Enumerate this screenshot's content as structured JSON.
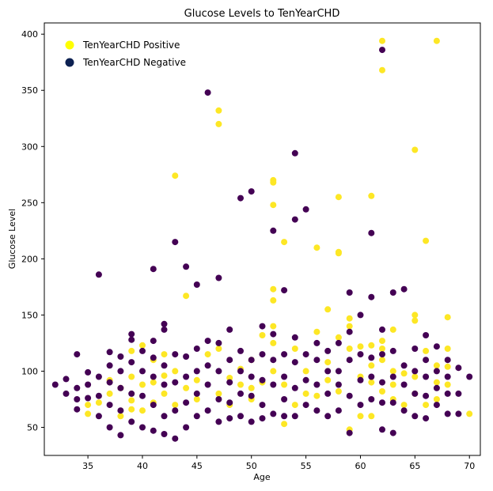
{
  "chart_data": {
    "type": "scatter",
    "title": "Glucose Levels to TenYearCHD",
    "xlabel": "Age",
    "ylabel": "Glucose Level",
    "xlim": [
      31,
      71
    ],
    "ylim": [
      25,
      410
    ],
    "xticks": [
      35,
      40,
      45,
      50,
      55,
      60,
      65,
      70
    ],
    "yticks": [
      50,
      100,
      150,
      200,
      250,
      300,
      350,
      400
    ],
    "grid": false,
    "legend_position": "top-left",
    "series": [
      {
        "name": "TenYearCHD Positive",
        "color": "#fde725",
        "points": [
          [
            35,
            62
          ],
          [
            35,
            70
          ],
          [
            36,
            72
          ],
          [
            37,
            80
          ],
          [
            37,
            92
          ],
          [
            38,
            60
          ],
          [
            38,
            85
          ],
          [
            39,
            66
          ],
          [
            39,
            74
          ],
          [
            39,
            95
          ],
          [
            39,
            118
          ],
          [
            40,
            65
          ],
          [
            40,
            88
          ],
          [
            40,
            123
          ],
          [
            41,
            72
          ],
          [
            41,
            90
          ],
          [
            41,
            110
          ],
          [
            42,
            115
          ],
          [
            42,
            80
          ],
          [
            42,
            96
          ],
          [
            43,
            274
          ],
          [
            43,
            100
          ],
          [
            43,
            70
          ],
          [
            44,
            167
          ],
          [
            44,
            85
          ],
          [
            45,
            75
          ],
          [
            45,
            92
          ],
          [
            46,
            115
          ],
          [
            47,
            332
          ],
          [
            47,
            320
          ],
          [
            47,
            80
          ],
          [
            47,
            120
          ],
          [
            48,
            70
          ],
          [
            48,
            94
          ],
          [
            49,
            88
          ],
          [
            49,
            102
          ],
          [
            50,
            85
          ],
          [
            50,
            75
          ],
          [
            50,
            110
          ],
          [
            51,
            132
          ],
          [
            51,
            90
          ],
          [
            52,
            270
          ],
          [
            52,
            268
          ],
          [
            52,
            248
          ],
          [
            52,
            173
          ],
          [
            52,
            163
          ],
          [
            52,
            140
          ],
          [
            52,
            125
          ],
          [
            52,
            100
          ],
          [
            53,
            215
          ],
          [
            53,
            53
          ],
          [
            53,
            88
          ],
          [
            54,
            70
          ],
          [
            54,
            120
          ],
          [
            55,
            80
          ],
          [
            55,
            100
          ],
          [
            56,
            210
          ],
          [
            56,
            135
          ],
          [
            56,
            78
          ],
          [
            57,
            155
          ],
          [
            57,
            108
          ],
          [
            57,
            92
          ],
          [
            58,
            206
          ],
          [
            58,
            205
          ],
          [
            58,
            255
          ],
          [
            58,
            130
          ],
          [
            58,
            82
          ],
          [
            59,
            147
          ],
          [
            59,
            140
          ],
          [
            59,
            120
          ],
          [
            59,
            48
          ],
          [
            60,
            122
          ],
          [
            60,
            95
          ],
          [
            60,
            60
          ],
          [
            61,
            256
          ],
          [
            61,
            123
          ],
          [
            61,
            105
          ],
          [
            61,
            90
          ],
          [
            61,
            60
          ],
          [
            62,
            394
          ],
          [
            62,
            368
          ],
          [
            62,
            127
          ],
          [
            62,
            120
          ],
          [
            62,
            110
          ],
          [
            62,
            82
          ],
          [
            63,
            137
          ],
          [
            63,
            100
          ],
          [
            63,
            88
          ],
          [
            63,
            75
          ],
          [
            64,
            98
          ],
          [
            64,
            70
          ],
          [
            65,
            297
          ],
          [
            65,
            150
          ],
          [
            65,
            145
          ],
          [
            65,
            95
          ],
          [
            65,
            80
          ],
          [
            66,
            216
          ],
          [
            66,
            118
          ],
          [
            66,
            70
          ],
          [
            67,
            394
          ],
          [
            67,
            105
          ],
          [
            67,
            90
          ],
          [
            67,
            75
          ],
          [
            68,
            148
          ],
          [
            68,
            120
          ],
          [
            68,
            104
          ],
          [
            68,
            88
          ],
          [
            70,
            62
          ]
        ]
      },
      {
        "name": "TenYearCHD Negative",
        "color": "#440154",
        "points": [
          [
            32,
            88
          ],
          [
            33,
            80
          ],
          [
            33,
            93
          ],
          [
            34,
            115
          ],
          [
            34,
            66
          ],
          [
            34,
            75
          ],
          [
            34,
            85
          ],
          [
            35,
            99
          ],
          [
            35,
            88
          ],
          [
            35,
            76
          ],
          [
            36,
            186
          ],
          [
            36,
            95
          ],
          [
            36,
            78
          ],
          [
            36,
            60
          ],
          [
            37,
            117
          ],
          [
            37,
            105
          ],
          [
            37,
            90
          ],
          [
            37,
            70
          ],
          [
            37,
            50
          ],
          [
            38,
            113
          ],
          [
            38,
            100
          ],
          [
            38,
            85
          ],
          [
            38,
            43
          ],
          [
            38,
            65
          ],
          [
            39,
            133
          ],
          [
            39,
            128
          ],
          [
            39,
            108
          ],
          [
            39,
            80
          ],
          [
            39,
            55
          ],
          [
            40,
            118
          ],
          [
            40,
            100
          ],
          [
            40,
            78
          ],
          [
            40,
            50
          ],
          [
            41,
            191
          ],
          [
            41,
            127
          ],
          [
            41,
            112
          ],
          [
            41,
            95
          ],
          [
            41,
            70
          ],
          [
            41,
            47
          ],
          [
            42,
            142
          ],
          [
            42,
            137
          ],
          [
            42,
            105
          ],
          [
            42,
            88
          ],
          [
            42,
            60
          ],
          [
            42,
            44
          ],
          [
            43,
            215
          ],
          [
            43,
            115
          ],
          [
            43,
            90
          ],
          [
            43,
            65
          ],
          [
            43,
            40
          ],
          [
            44,
            193
          ],
          [
            44,
            113
          ],
          [
            44,
            95
          ],
          [
            44,
            72
          ],
          [
            44,
            50
          ],
          [
            45,
            177
          ],
          [
            45,
            120
          ],
          [
            45,
            100
          ],
          [
            45,
            80
          ],
          [
            45,
            60
          ],
          [
            46,
            348
          ],
          [
            46,
            127
          ],
          [
            46,
            105
          ],
          [
            46,
            88
          ],
          [
            46,
            65
          ],
          [
            47,
            183
          ],
          [
            47,
            125
          ],
          [
            47,
            100
          ],
          [
            47,
            75
          ],
          [
            47,
            55
          ],
          [
            48,
            137
          ],
          [
            48,
            110
          ],
          [
            48,
            90
          ],
          [
            48,
            72
          ],
          [
            48,
            58
          ],
          [
            49,
            254
          ],
          [
            49,
            118
          ],
          [
            49,
            100
          ],
          [
            49,
            80
          ],
          [
            49,
            60
          ],
          [
            50,
            260
          ],
          [
            50,
            110
          ],
          [
            50,
            95
          ],
          [
            50,
            78
          ],
          [
            50,
            55
          ],
          [
            51,
            140
          ],
          [
            51,
            115
          ],
          [
            51,
            92
          ],
          [
            51,
            70
          ],
          [
            51,
            58
          ],
          [
            52,
            225
          ],
          [
            52,
            133
          ],
          [
            52,
            110
          ],
          [
            52,
            88
          ],
          [
            52,
            62
          ],
          [
            53,
            172
          ],
          [
            53,
            115
          ],
          [
            53,
            95
          ],
          [
            53,
            75
          ],
          [
            53,
            60
          ],
          [
            54,
            294
          ],
          [
            54,
            235
          ],
          [
            54,
            130
          ],
          [
            54,
            108
          ],
          [
            54,
            85
          ],
          [
            54,
            60
          ],
          [
            55,
            244
          ],
          [
            55,
            115
          ],
          [
            55,
            92
          ],
          [
            55,
            70
          ],
          [
            56,
            125
          ],
          [
            56,
            110
          ],
          [
            56,
            88
          ],
          [
            56,
            65
          ],
          [
            57,
            118
          ],
          [
            57,
            100
          ],
          [
            57,
            80
          ],
          [
            57,
            60
          ],
          [
            58,
            125
          ],
          [
            58,
            100
          ],
          [
            58,
            88
          ],
          [
            58,
            65
          ],
          [
            59,
            170
          ],
          [
            59,
            135
          ],
          [
            59,
            110
          ],
          [
            59,
            78
          ],
          [
            59,
            45
          ],
          [
            60,
            150
          ],
          [
            60,
            115
          ],
          [
            60,
            92
          ],
          [
            60,
            70
          ],
          [
            61,
            223
          ],
          [
            61,
            166
          ],
          [
            61,
            112
          ],
          [
            61,
            95
          ],
          [
            61,
            75
          ],
          [
            62,
            386
          ],
          [
            62,
            137
          ],
          [
            62,
            115
          ],
          [
            62,
            90
          ],
          [
            62,
            72
          ],
          [
            62,
            48
          ],
          [
            63,
            170
          ],
          [
            63,
            118
          ],
          [
            63,
            95
          ],
          [
            63,
            72
          ],
          [
            63,
            45
          ],
          [
            64,
            173
          ],
          [
            64,
            105
          ],
          [
            64,
            88
          ],
          [
            64,
            65
          ],
          [
            65,
            120
          ],
          [
            65,
            100
          ],
          [
            65,
            80
          ],
          [
            65,
            60
          ],
          [
            66,
            132
          ],
          [
            66,
            110
          ],
          [
            66,
            95
          ],
          [
            66,
            78
          ],
          [
            66,
            58
          ],
          [
            67,
            122
          ],
          [
            67,
            100
          ],
          [
            67,
            85
          ],
          [
            67,
            70
          ],
          [
            68,
            110
          ],
          [
            68,
            95
          ],
          [
            68,
            80
          ],
          [
            68,
            62
          ],
          [
            69,
            103
          ],
          [
            69,
            80
          ],
          [
            69,
            62
          ],
          [
            70,
            95
          ]
        ]
      }
    ]
  },
  "legend": {
    "items": [
      {
        "label": "TenYearCHD Positive",
        "color": "#ffff00"
      },
      {
        "label": "TenYearCHD Negative",
        "color": "#0d2152"
      }
    ]
  }
}
